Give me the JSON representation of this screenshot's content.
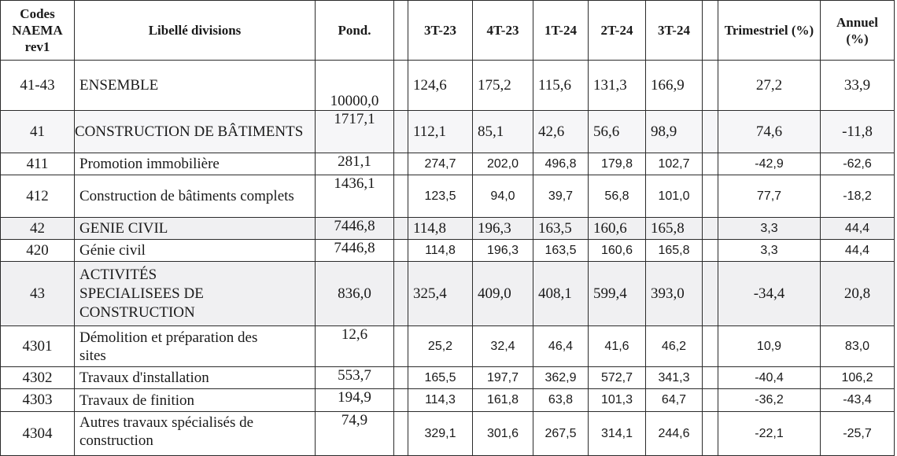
{
  "headers": {
    "code": "Codes NAEMA rev1",
    "label": "Libellé divisions",
    "pond": "Pond.",
    "periods": [
      "3T-23",
      "4T-23",
      "1T-24",
      "2T-24",
      "3T-24"
    ],
    "trimestriel": "Trimestriel (%)",
    "annuel": "Annuel (%)"
  },
  "rows": [
    {
      "code": "41-43",
      "label": "ENSEMBLE",
      "pond": "10000,0",
      "v1": "124,6",
      "v2": "175,2",
      "v3": "115,6",
      "v4": "131,3",
      "v5": "166,9",
      "trim": "27,2",
      "ann": "33,9"
    },
    {
      "code": "41",
      "label": "CONSTRUCTION DE BÂTIMENTS",
      "pond": "1717,1",
      "v1": "112,1",
      "v2": "85,1",
      "v3": "42,6",
      "v4": "56,6",
      "v5": "98,9",
      "trim": "74,6",
      "ann": "-11,8"
    },
    {
      "code": "411",
      "label": "Promotion immobilière",
      "pond": "281,1",
      "v1": "274,7",
      "v2": "202,0",
      "v3": "496,8",
      "v4": "179,8",
      "v5": "102,7",
      "trim": "-42,9",
      "ann": "-62,6"
    },
    {
      "code": "412",
      "label": "Construction de bâtiments complets",
      "pond": "1436,1",
      "v1": "123,5",
      "v2": "94,0",
      "v3": "39,7",
      "v4": "56,8",
      "v5": "101,0",
      "trim": "77,7",
      "ann": "-18,2"
    },
    {
      "code": "42",
      "label": "GENIE CIVIL",
      "pond": "7446,8",
      "v1": "114,8",
      "v2": "196,3",
      "v3": "163,5",
      "v4": "160,6",
      "v5": "165,8",
      "trim": "3,3",
      "ann": "44,4"
    },
    {
      "code": "420",
      "label": "Génie civil",
      "pond": "7446,8",
      "v1": "114,8",
      "v2": "196,3",
      "v3": "163,5",
      "v4": "160,6",
      "v5": "165,8",
      "trim": "3,3",
      "ann": "44,4"
    },
    {
      "code": "43",
      "label": "ACTIVITÉS SPECIALISEES DE CONSTRUCTION",
      "pond": "836,0",
      "v1": "325,4",
      "v2": "409,0",
      "v3": "408,1",
      "v4": "599,4",
      "v5": "393,0",
      "trim": "-34,4",
      "ann": "20,8"
    },
    {
      "code": "4301",
      "label": "Démolition et préparation des sites",
      "pond": "12,6",
      "v1": "25,2",
      "v2": "32,4",
      "v3": "46,4",
      "v4": "41,6",
      "v5": "46,2",
      "trim": "10,9",
      "ann": "83,0"
    },
    {
      "code": "4302",
      "label": "Travaux d'installation",
      "pond": "553,7",
      "v1": "165,5",
      "v2": "197,7",
      "v3": "362,9",
      "v4": "572,7",
      "v5": "341,3",
      "trim": "-40,4",
      "ann": "106,2"
    },
    {
      "code": "4303",
      "label": "Travaux de finition",
      "pond": "194,9",
      "v1": "114,3",
      "v2": "161,8",
      "v3": "63,8",
      "v4": "101,3",
      "v5": "64,7",
      "trim": "-36,2",
      "ann": "-43,4"
    },
    {
      "code": "4304",
      "label": "Autres travaux spécialisés de construction",
      "pond": "74,9",
      "v1": "329,1",
      "v2": "301,6",
      "v3": "267,5",
      "v4": "314,1",
      "v5": "244,6",
      "trim": "-22,1",
      "ann": "-25,7"
    }
  ]
}
